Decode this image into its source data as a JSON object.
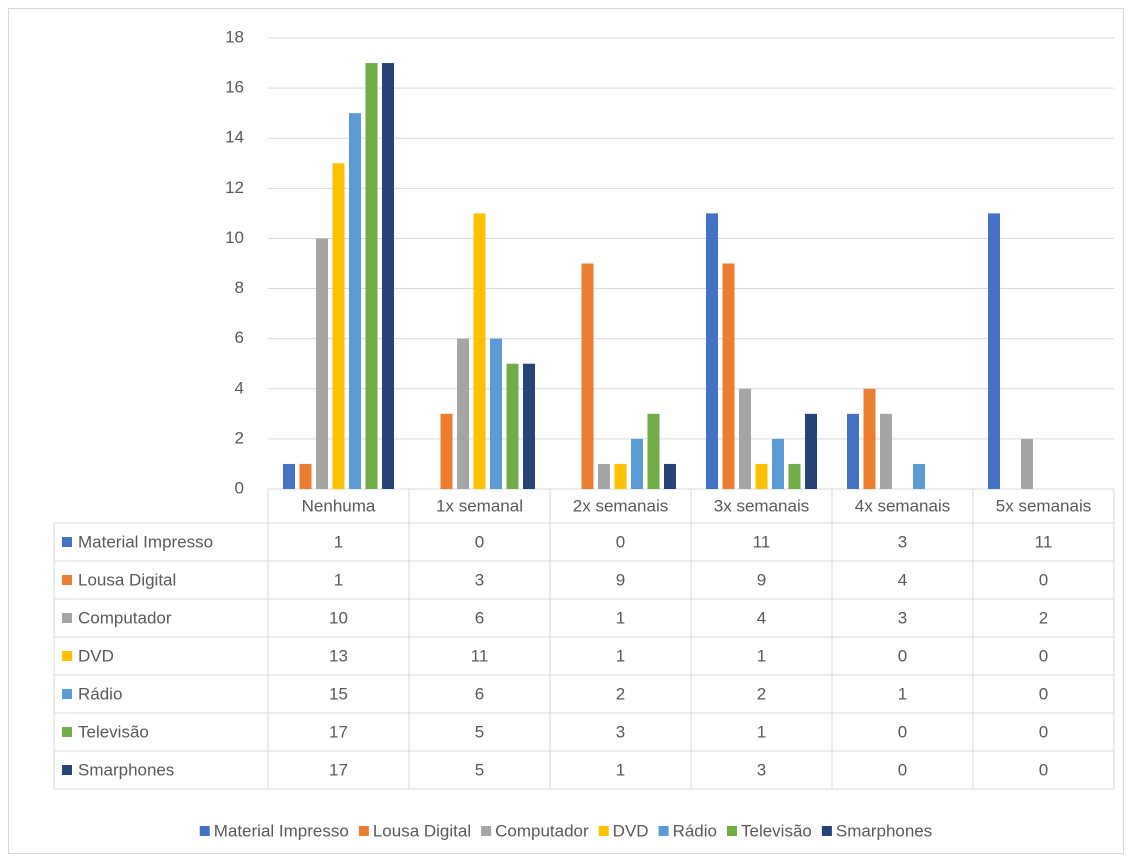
{
  "chart_data": {
    "type": "bar",
    "categories": [
      "Nenhuma",
      "1x semanal",
      "2x semanais",
      "3x semanais",
      "4x semanais",
      "5x semanais"
    ],
    "series": [
      {
        "name": "Material Impresso",
        "color": "#4472c4",
        "values": [
          1,
          0,
          0,
          11,
          3,
          11
        ]
      },
      {
        "name": "Lousa Digital",
        "color": "#ed7d31",
        "values": [
          1,
          3,
          9,
          9,
          4,
          0
        ]
      },
      {
        "name": "Computador",
        "color": "#a5a5a5",
        "values": [
          10,
          6,
          1,
          4,
          3,
          2
        ]
      },
      {
        "name": "DVD",
        "color": "#ffc000",
        "values": [
          13,
          11,
          1,
          1,
          0,
          0
        ]
      },
      {
        "name": "Rádio",
        "color": "#5b9bd5",
        "values": [
          15,
          6,
          2,
          2,
          1,
          0
        ]
      },
      {
        "name": "Televisão",
        "color": "#70ad47",
        "values": [
          17,
          5,
          3,
          1,
          0,
          0
        ]
      },
      {
        "name": "Smarphones",
        "color": "#264478",
        "values": [
          17,
          5,
          1,
          3,
          0,
          0
        ]
      }
    ],
    "ylim": [
      0,
      18
    ],
    "yticks": [
      0,
      2,
      4,
      6,
      8,
      10,
      12,
      14,
      16,
      18
    ],
    "grid": true,
    "legend": "bottom"
  }
}
